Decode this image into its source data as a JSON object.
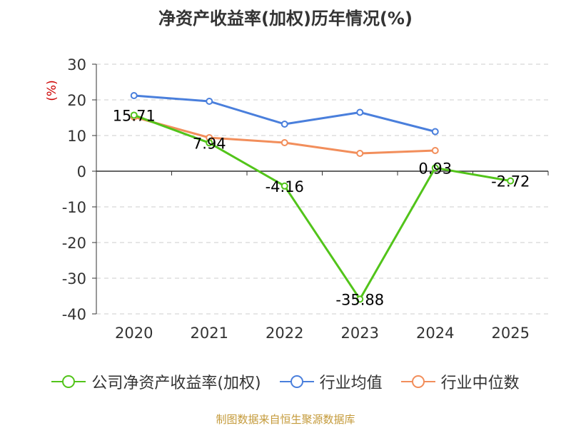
{
  "chart_data": {
    "type": "line",
    "title": "净资产收益率(加权)历年情况(%)",
    "ylabel": "(%)",
    "xlabel": "",
    "categories": [
      "2020",
      "2021",
      "2022",
      "2023",
      "2024",
      "2025"
    ],
    "ylim": [
      -40,
      30
    ],
    "yticks": [
      30,
      20,
      10,
      0,
      -10,
      -20,
      -30,
      -40
    ],
    "grid": true,
    "legend_position": "bottom",
    "series": [
      {
        "name": "公司净资产收益率(加权)",
        "color": "#52c41a",
        "values": [
          15.71,
          7.94,
          -4.16,
          -35.88,
          0.93,
          -2.72
        ],
        "labels": [
          "15.71",
          "7.94",
          "-4.16",
          "-35.88",
          "0.93",
          "-2.72"
        ]
      },
      {
        "name": "行业均值",
        "color": "#4a7fdc",
        "values": [
          21.2,
          19.6,
          13.2,
          16.5,
          11.1,
          null
        ]
      },
      {
        "name": "行业中位数",
        "color": "#f28e5b",
        "values": [
          15.2,
          9.4,
          8.0,
          5.0,
          5.8,
          null
        ]
      }
    ]
  },
  "source": "制图数据来自恒生聚源数据库"
}
